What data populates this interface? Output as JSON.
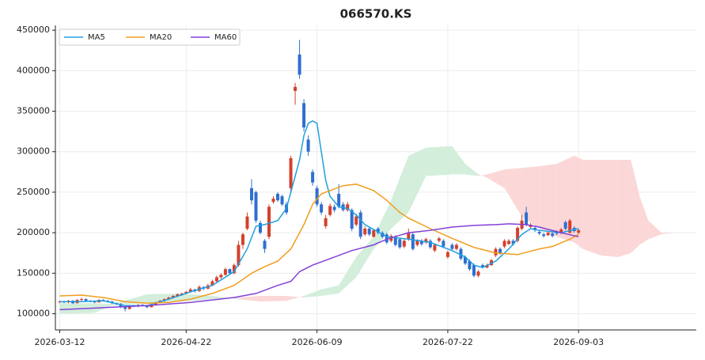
{
  "chart_data": {
    "type": "candlestick",
    "title": "066570.KS",
    "xlim": [
      -1,
      146
    ],
    "ylim": [
      80000,
      456000
    ],
    "yticks": [
      100000,
      150000,
      200000,
      250000,
      300000,
      350000,
      400000,
      450000
    ],
    "xticks": [
      {
        "value": 0,
        "label": "2026-03-12"
      },
      {
        "value": 29,
        "label": "2026-04-22"
      },
      {
        "value": 59,
        "label": "2026-06-09"
      },
      {
        "value": 89,
        "label": "2026-07-22"
      },
      {
        "value": 119,
        "label": "2026-09-03"
      }
    ],
    "grid": true,
    "legend": "upper left",
    "candles": {
      "up_color": "#d4402c",
      "down_color": "#2f6fd0",
      "open": [
        114000,
        115000,
        114000,
        116000,
        113000,
        117000,
        118000,
        116000,
        115000,
        114000,
        117000,
        116000,
        115000,
        113000,
        112000,
        108000,
        106000,
        110000,
        109000,
        111000,
        110000,
        108000,
        111000,
        114000,
        116000,
        118000,
        120000,
        122000,
        124000,
        125000,
        127000,
        130000,
        128000,
        133000,
        131000,
        135000,
        140000,
        145000,
        148000,
        155000,
        150000,
        160000,
        185000,
        205000,
        255000,
        250000,
        212000,
        190000,
        195000,
        238000,
        248000,
        245000,
        235000,
        255000,
        375000,
        420000,
        360000,
        315000,
        275000,
        255000,
        235000,
        208000,
        222000,
        232000,
        248000,
        235000,
        228000,
        228000,
        210000,
        225000,
        198000,
        205000,
        195000,
        205000,
        200000,
        198000,
        190000,
        195000,
        192000,
        183000,
        192000,
        198000,
        185000,
        190000,
        188000,
        190000,
        178000,
        190000,
        190000,
        170000,
        185000,
        180000,
        180000,
        170000,
        165000,
        160000,
        147000,
        160000,
        157000,
        160000,
        172000,
        180000,
        183000,
        186000,
        190000,
        190000,
        205000,
        225000,
        207000,
        206000,
        201000,
        198000,
        197000,
        199000,
        201000,
        200000,
        213000,
        200000,
        206000,
        200000
      ],
      "high": [
        116000,
        116000,
        117000,
        117000,
        118000,
        120000,
        119000,
        117000,
        116000,
        118000,
        118000,
        117000,
        116000,
        114000,
        113000,
        109000,
        111000,
        111000,
        112000,
        112000,
        111000,
        112000,
        115000,
        117000,
        119000,
        121000,
        123000,
        125000,
        126000,
        128000,
        132000,
        131000,
        135000,
        134000,
        137000,
        142000,
        147000,
        150000,
        157000,
        156000,
        162000,
        190000,
        200000,
        225000,
        266000,
        252000,
        215000,
        192000,
        235000,
        245000,
        250000,
        247000,
        238000,
        295000,
        385000,
        438000,
        365000,
        320000,
        278000,
        258000,
        238000,
        222000,
        236000,
        235000,
        260000,
        238000,
        238000,
        230000,
        223000,
        228000,
        208000,
        207000,
        205000,
        207000,
        202000,
        200000,
        198000,
        197000,
        194000,
        192000,
        205000,
        200000,
        192000,
        192000,
        194000,
        192000,
        187000,
        195000,
        192000,
        178000,
        187000,
        187000,
        182000,
        172000,
        167000,
        162000,
        154000,
        162000,
        162000,
        168000,
        182000,
        182000,
        192000,
        192000,
        192000,
        208000,
        222000,
        232000,
        212000,
        208000,
        203000,
        200000,
        202000,
        201000,
        203000,
        206000,
        215000,
        217000,
        208000,
        205000
      ],
      "low": [
        113000,
        113000,
        113000,
        112000,
        113000,
        116000,
        115000,
        114000,
        113000,
        114000,
        115000,
        114000,
        112000,
        111000,
        107000,
        103000,
        105000,
        108000,
        108000,
        109000,
        107000,
        108000,
        110000,
        113000,
        115000,
        117000,
        119000,
        121000,
        122000,
        124000,
        126000,
        126000,
        127000,
        129000,
        130000,
        134000,
        139000,
        143000,
        147000,
        148000,
        149000,
        158000,
        180000,
        203000,
        235000,
        212000,
        198000,
        175000,
        192000,
        236000,
        238000,
        233000,
        222000,
        250000,
        358000,
        390000,
        325000,
        295000,
        258000,
        232000,
        222000,
        205000,
        220000,
        225000,
        230000,
        226000,
        226000,
        202000,
        208000,
        192000,
        196000,
        196000,
        194000,
        198000,
        193000,
        186000,
        188000,
        183000,
        180000,
        181000,
        190000,
        178000,
        183000,
        184000,
        186000,
        180000,
        176000,
        188000,
        181000,
        168000,
        178000,
        178000,
        166000,
        160000,
        153000,
        145000,
        145000,
        156000,
        156000,
        159000,
        170000,
        173000,
        181000,
        185000,
        184000,
        188000,
        203000,
        208000,
        205000,
        201000,
        197000,
        194000,
        196000,
        194000,
        197000,
        198000,
        203000,
        199000,
        200000,
        198000
      ],
      "close": [
        115000,
        114000,
        116000,
        113000,
        117000,
        118000,
        116000,
        115000,
        114000,
        117000,
        116000,
        115000,
        113000,
        112000,
        108000,
        106000,
        110000,
        109000,
        111000,
        110000,
        108000,
        111000,
        114000,
        116000,
        118000,
        120000,
        122000,
        124000,
        125000,
        127000,
        130000,
        128000,
        133000,
        131000,
        135000,
        140000,
        145000,
        148000,
        155000,
        150000,
        160000,
        185000,
        198000,
        220000,
        240000,
        215000,
        200000,
        180000,
        232000,
        242000,
        240000,
        235000,
        225000,
        292000,
        380000,
        395000,
        330000,
        300000,
        262000,
        235000,
        225000,
        218000,
        233000,
        228000,
        232000,
        228000,
        235000,
        205000,
        220000,
        195000,
        205000,
        198000,
        203000,
        200000,
        195000,
        188000,
        196000,
        185000,
        182000,
        190000,
        200000,
        180000,
        190000,
        186000,
        192000,
        182000,
        185000,
        193000,
        183000,
        176000,
        180000,
        185000,
        168000,
        162000,
        155000,
        147000,
        152000,
        158000,
        160000,
        166000,
        180000,
        175000,
        190000,
        190000,
        186000,
        206000,
        215000,
        210000,
        210000,
        203000,
        199000,
        196000,
        200000,
        196000,
        199000,
        204000,
        205000,
        215000,
        202000,
        203000
      ]
    },
    "series": [
      {
        "name": "MA5",
        "color": "#1ea0e0",
        "x": [
          0,
          5,
          10,
          15,
          20,
          25,
          30,
          35,
          40,
          43,
          45,
          47,
          50,
          52,
          54,
          55,
          56,
          57,
          58,
          59,
          60,
          61,
          62,
          64,
          66,
          68,
          70,
          75,
          80,
          85,
          90,
          93,
          95,
          97,
          100,
          103,
          106,
          108,
          110,
          115,
          119
        ],
        "values": [
          115000,
          115000,
          116000,
          110000,
          110000,
          118000,
          127000,
          135000,
          152000,
          180000,
          208000,
          210000,
          215000,
          230000,
          270000,
          290000,
          320000,
          335000,
          338000,
          335000,
          300000,
          265000,
          245000,
          232000,
          230000,
          222000,
          210000,
          195000,
          192000,
          188000,
          178000,
          170000,
          160000,
          157000,
          165000,
          180000,
          198000,
          205000,
          203000,
          200000,
          205000
        ]
      },
      {
        "name": "MA20",
        "color": "#f29d1c",
        "x": [
          0,
          5,
          10,
          15,
          20,
          25,
          30,
          35,
          40,
          44,
          47,
          50,
          53,
          56,
          58,
          60,
          65,
          68,
          72,
          75,
          78,
          80,
          85,
          90,
          95,
          100,
          105,
          110,
          113,
          117,
          119
        ],
        "values": [
          122000,
          123000,
          120000,
          115000,
          113000,
          114000,
          118000,
          125000,
          135000,
          150000,
          158000,
          165000,
          180000,
          210000,
          235000,
          248000,
          258000,
          260000,
          252000,
          240000,
          225000,
          218000,
          205000,
          193000,
          182000,
          175000,
          173000,
          180000,
          183000,
          192000,
          198000
        ]
      },
      {
        "name": "MA60",
        "color": "#8440d8",
        "x": [
          0,
          20,
          30,
          40,
          45,
          50,
          53,
          55,
          58,
          62,
          67,
          72,
          75,
          80,
          85,
          90,
          95,
          100,
          103,
          107,
          110,
          115,
          119
        ],
        "values": [
          105000,
          110000,
          114000,
          120000,
          125000,
          135000,
          140000,
          152000,
          160000,
          168000,
          178000,
          185000,
          192000,
          200000,
          203000,
          207000,
          209000,
          210000,
          211000,
          210000,
          207000,
          200000,
          195000
        ]
      }
    ],
    "cloud": {
      "bullish_color": "#d3eedb",
      "bearish_color": "#fbd7d8",
      "x": [
        0,
        8,
        12,
        16,
        20,
        28,
        35,
        41,
        46,
        52,
        56,
        60,
        64,
        68,
        72,
        76,
        80,
        84,
        90,
        93,
        96,
        98,
        102,
        106,
        110,
        114,
        118,
        120,
        124,
        128,
        131,
        133,
        135,
        138,
        141,
        145
      ],
      "span_a": [
        113000,
        113000,
        112000,
        118000,
        124000,
        125000,
        122000,
        118000,
        115000,
        116000,
        122000,
        130000,
        135000,
        170000,
        195000,
        240000,
        295000,
        305000,
        307000,
        285000,
        272000,
        268000,
        255000,
        220000,
        205000,
        195000,
        188000,
        180000,
        172000,
        170000,
        175000,
        185000,
        192000,
        198000,
        200000,
        193000
      ],
      "span_b": [
        100000,
        101000,
        110000,
        112000,
        113000,
        115000,
        118000,
        120000,
        122000,
        122000,
        120000,
        122000,
        125000,
        145000,
        180000,
        205000,
        225000,
        270000,
        272000,
        272000,
        270000,
        272000,
        278000,
        280000,
        282000,
        285000,
        295000,
        290000,
        290000,
        290000,
        290000,
        245000,
        215000,
        200000,
        200000,
        193000
      ]
    }
  }
}
